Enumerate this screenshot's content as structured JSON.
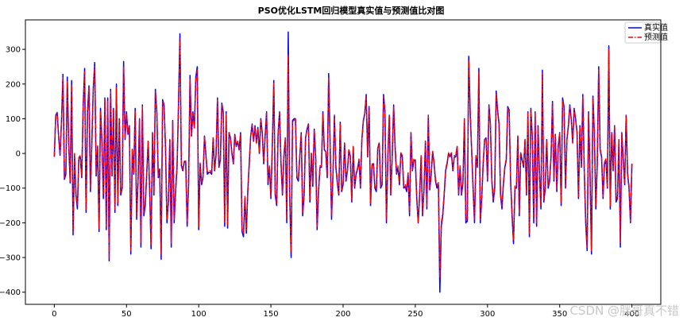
{
  "chart_data": {
    "type": "line",
    "title": "PSO优化LSTM回归模型真实值与预测值比对图",
    "xlabel": "",
    "ylabel": "",
    "xlim": [
      -20,
      420
    ],
    "ylim": [
      -435,
      385
    ],
    "x_ticks": [
      0,
      50,
      100,
      150,
      200,
      250,
      300,
      350,
      400
    ],
    "x_tick_labels": [
      "0",
      "50",
      "100",
      "150",
      "200",
      "250",
      "300",
      "350",
      "400"
    ],
    "y_ticks": [
      300,
      200,
      100,
      0,
      -100,
      -200,
      -300,
      -400
    ],
    "y_tick_labels": [
      "300",
      "200",
      "100",
      "0",
      "−100",
      "−200",
      "−300",
      "−400"
    ],
    "grid": false,
    "legend_position": "top-right",
    "series": [
      {
        "name": "真实值",
        "color": "#0000ff",
        "style": "solid",
        "values": [
          -10,
          110,
          118,
          48,
          -5,
          95,
          228,
          -75,
          -60,
          220,
          25,
          -85,
          210,
          -235,
          -5,
          -120,
          -160,
          -15,
          -10,
          -70,
          140,
          245,
          -170,
          120,
          195,
          -110,
          30,
          190,
          262,
          -65,
          20,
          -225,
          130,
          30,
          -130,
          160,
          -220,
          160,
          -310,
          185,
          -65,
          130,
          -170,
          200,
          -150,
          100,
          -120,
          -100,
          265,
          40,
          120,
          55,
          80,
          -290,
          10,
          -60,
          130,
          -190,
          -80,
          100,
          -270,
          140,
          -180,
          -150,
          -60,
          35,
          -100,
          -275,
          60,
          -120,
          185,
          120,
          -70,
          -45,
          -305,
          155,
          140,
          20,
          -200,
          -140,
          40,
          -270,
          95,
          -200,
          -110,
          -40,
          140,
          345,
          -35,
          -50,
          -25,
          -25,
          -210,
          -90,
          225,
          50,
          120,
          75,
          220,
          250,
          -220,
          -30,
          -90,
          -70,
          50,
          -5,
          -60,
          -55,
          -55,
          -60,
          45,
          -50,
          -5,
          160,
          -40,
          -20,
          145,
          120,
          -210,
          120,
          -215,
          60,
          45,
          0,
          -30,
          55,
          20,
          35,
          10,
          60,
          -225,
          -240,
          -130,
          -230,
          -110,
          -30,
          50,
          85,
          35,
          80,
          30,
          75,
          0,
          100,
          60,
          -30,
          50,
          120,
          -90,
          -40,
          -130,
          25,
          210,
          -120,
          -150,
          60,
          120,
          -30,
          -120,
          -10,
          45,
          -200,
          350,
          -120,
          -300,
          95,
          100,
          100,
          -70,
          -80,
          -10,
          60,
          -180,
          -120,
          45,
          70,
          85,
          -140,
          0,
          -95,
          70,
          -10,
          -220,
          -110,
          -40,
          -40,
          120,
          10,
          5,
          -70,
          230,
          30,
          -190,
          -60,
          110,
          -40,
          -85,
          -120,
          90,
          -110,
          -90,
          30,
          -80,
          -50,
          10,
          -10,
          -140,
          20,
          -100,
          -60,
          -45,
          -20,
          -100,
          40,
          95,
          115,
          170,
          -10,
          135,
          -150,
          -35,
          -30,
          -100,
          -110,
          15,
          30,
          -100,
          -90,
          170,
          120,
          -200,
          -10,
          110,
          -120,
          -10,
          140,
          20,
          -60,
          -40,
          -90,
          0,
          -10,
          -100,
          -95,
          -110,
          -60,
          -180,
          60,
          -50,
          -20,
          -20,
          -130,
          -200,
          -120,
          -10,
          -180,
          -105,
          35,
          -160,
          110,
          -105,
          -60,
          5,
          -30,
          -80,
          -100,
          -90,
          -400,
          -210,
          -180,
          -120,
          -50,
          -30,
          0,
          -10,
          0,
          -50,
          -10,
          -10,
          20,
          -120,
          -40,
          -120,
          -85,
          100,
          -200,
          -195,
          280,
          120,
          10,
          -100,
          -200,
          -10,
          -40,
          245,
          -200,
          -130,
          -30,
          40,
          45,
          -80,
          140,
          85,
          -80,
          -140,
          -100,
          180,
          125,
          85,
          -120,
          -160,
          -90,
          -40,
          -20,
          135,
          125,
          -80,
          -180,
          -260,
          -100,
          -100,
          50,
          -180,
          0,
          -20,
          -40,
          40,
          -120,
          120,
          -240,
          130,
          50,
          -200,
          120,
          -210,
          80,
          -60,
          -160,
          240,
          -140,
          -100,
          40,
          -100,
          -80,
          -10,
          150,
          -80,
          55,
          -110,
          20,
          60,
          -150,
          160,
          135,
          -100,
          40,
          80,
          140,
          100,
          30,
          130,
          100,
          60,
          -130,
          80,
          -40,
          170,
          -50,
          -200,
          -280,
          120,
          -60,
          -290,
          165,
          60,
          -160,
          -30,
          250,
          10,
          -10,
          -130,
          -30,
          -20,
          -100,
          310,
          -160,
          60,
          -50,
          80,
          -140,
          -130,
          40,
          -270,
          60,
          -20,
          -90,
          110,
          -60,
          -100,
          -200,
          -30
        ]
      },
      {
        "name": "预测值",
        "color": "#ff0000",
        "style": "dashdot",
        "values": [
          -8,
          108,
          115,
          50,
          0,
          92,
          218,
          -70,
          -55,
          210,
          28,
          -80,
          200,
          -225,
          0,
          -115,
          -150,
          -12,
          -5,
          -65,
          135,
          235,
          -160,
          118,
          190,
          -100,
          32,
          182,
          250,
          -60,
          22,
          -215,
          125,
          32,
          -120,
          155,
          -210,
          152,
          -300,
          178,
          -60,
          126,
          -160,
          190,
          -140,
          98,
          -112,
          -95,
          252,
          42,
          115,
          55,
          78,
          -280,
          12,
          -55,
          125,
          -180,
          -75,
          98,
          -258,
          135,
          -170,
          -142,
          -55,
          36,
          -95,
          -262,
          58,
          -112,
          178,
          118,
          -65,
          -42,
          -290,
          150,
          136,
          22,
          -190,
          -132,
          40,
          -258,
          92,
          -190,
          -102,
          -36,
          136,
          330,
          -32,
          -46,
          -22,
          -22,
          -198,
          -84,
          215,
          50,
          116,
          72,
          212,
          240,
          -210,
          -28,
          -84,
          -64,
          50,
          -2,
          -56,
          -50,
          -50,
          -55,
          44,
          -46,
          -2,
          154,
          -36,
          -16,
          140,
          116,
          -200,
          116,
          -205,
          60,
          44,
          2,
          -26,
          54,
          22,
          35,
          12,
          58,
          -215,
          -232,
          -124,
          -220,
          -104,
          -26,
          50,
          82,
          36,
          78,
          30,
          72,
          2,
          96,
          58,
          -26,
          50,
          116,
          -84,
          -36,
          -124,
          26,
          202,
          -114,
          -142,
          58,
          116,
          -26,
          -114,
          -6,
          44,
          -190,
          285,
          -114,
          -285,
          92,
          96,
          98,
          -64,
          -74,
          -6,
          58,
          -172,
          -114,
          44,
          68,
          82,
          -132,
          2,
          -88,
          68,
          -6,
          -210,
          -104,
          -36,
          -36,
          116,
          12,
          6,
          -64,
          220,
          30,
          -180,
          -56,
          108,
          -36,
          -80,
          -114,
          88,
          -104,
          -84,
          30,
          -74,
          -46,
          12,
          -6,
          -132,
          22,
          -94,
          -56,
          -42,
          -16,
          -94,
          40,
          92,
          112,
          164,
          -6,
          132,
          -142,
          -32,
          -26,
          -94,
          -104,
          16,
          30,
          -94,
          -84,
          164,
          116,
          -190,
          -6,
          108,
          -114,
          -6,
          136,
          22,
          -56,
          -36,
          -84,
          2,
          -6,
          -94,
          -90,
          -104,
          -56,
          -170,
          58,
          -46,
          -16,
          -16,
          -124,
          -200,
          -114,
          -6,
          -172,
          -100,
          36,
          -152,
          108,
          -100,
          -56,
          6,
          -26,
          -74,
          -94,
          -84,
          -360,
          -200,
          -172,
          -114,
          -46,
          -26,
          2,
          -6,
          2,
          -46,
          -6,
          -6,
          22,
          -114,
          -36,
          -114,
          -80,
          98,
          -190,
          -186,
          270,
          116,
          12,
          -94,
          -190,
          -6,
          -36,
          236,
          -190,
          -124,
          -26,
          40,
          44,
          -74,
          136,
          82,
          -74,
          -132,
          -94,
          174,
          120,
          82,
          -114,
          -152,
          -84,
          -36,
          -16,
          130,
          120,
          -74,
          -172,
          -250,
          -94,
          -94,
          50,
          -172,
          2,
          -16,
          -36,
          40,
          -114,
          116,
          -230,
          126,
          50,
          -190,
          116,
          -200,
          78,
          -56,
          -152,
          232,
          -132,
          -94,
          40,
          -94,
          -74,
          -6,
          144,
          -74,
          54,
          -104,
          22,
          58,
          -142,
          154,
          130,
          -94,
          40,
          78,
          136,
          98,
          30,
          126,
          98,
          58,
          -124,
          78,
          -36,
          164,
          -46,
          -190,
          -270,
          116,
          -56,
          -280,
          160,
          58,
          -152,
          -26,
          240,
          12,
          -6,
          -124,
          -26,
          -16,
          -94,
          300,
          -152,
          58,
          -46,
          78,
          -132,
          -124,
          40,
          -258,
          58,
          -16,
          -84,
          108,
          -56,
          -94,
          -195,
          -26
        ]
      }
    ]
  },
  "watermark": "CSDN @胖哥真不错"
}
